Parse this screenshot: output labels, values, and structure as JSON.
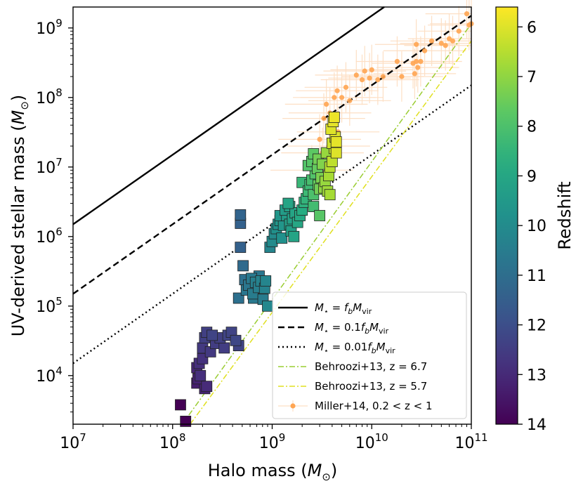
{
  "chart_data": {
    "type": "scatter",
    "xscale": "log",
    "yscale": "log",
    "xlim": [
      10000000.0,
      100000000000.0
    ],
    "ylim": [
      2000.0,
      2000000000.0
    ],
    "xlabel": "Halo mass (M⊙)",
    "ylabel": "UV-derived stellar mass (M⊙)",
    "x_ticks": [
      {
        "value": 10000000.0,
        "base": "10",
        "exp": "7"
      },
      {
        "value": 100000000.0,
        "base": "10",
        "exp": "8"
      },
      {
        "value": 1000000000.0,
        "base": "10",
        "exp": "9"
      },
      {
        "value": 10000000000.0,
        "base": "10",
        "exp": "10"
      },
      {
        "value": 100000000000.0,
        "base": "10",
        "exp": "11"
      }
    ],
    "y_ticks": [
      {
        "value": 10000.0,
        "base": "10",
        "exp": "4"
      },
      {
        "value": 100000.0,
        "base": "10",
        "exp": "5"
      },
      {
        "value": 1000000.0,
        "base": "10",
        "exp": "6"
      },
      {
        "value": 10000000.0,
        "base": "10",
        "exp": "7"
      },
      {
        "value": 100000000.0,
        "base": "10",
        "exp": "8"
      },
      {
        "value": 1000000000.0,
        "base": "10",
        "exp": "9"
      }
    ],
    "colorbar": {
      "label": "Redshift",
      "range": [
        5.6,
        14
      ],
      "ticks": [
        "6",
        "7",
        "8",
        "9",
        "10",
        "11",
        "12",
        "13",
        "14"
      ]
    },
    "lines": [
      {
        "name": "fb",
        "label_prefix": "M",
        "label_sub": "⋆",
        "label_eq": " = ",
        "label_f": "f",
        "label_fsub": "b",
        "label_M": "M",
        "label_Msub": "vir",
        "label_coef": "",
        "style": "solid",
        "color": "#000000",
        "ratio": 0.15
      },
      {
        "name": "fb01",
        "label_prefix": "M",
        "label_sub": "⋆",
        "label_eq": " = ",
        "label_f": "f",
        "label_fsub": "b",
        "label_M": "M",
        "label_Msub": "vir",
        "label_coef": "0.1",
        "style": "dashed",
        "color": "#000000",
        "ratio": 0.015
      },
      {
        "name": "fb001",
        "label_prefix": "M",
        "label_sub": "⋆",
        "label_eq": " = ",
        "label_f": "f",
        "label_fsub": "b",
        "label_M": "M",
        "label_Msub": "vir",
        "label_coef": "0.01",
        "style": "dotted",
        "color": "#000000",
        "ratio": 0.0015
      }
    ],
    "behroozi": [
      {
        "label": "Behroozi+13, z = 6.7",
        "color": "#9acd32",
        "points": [
          [
            125000000.0,
            2000.0
          ],
          [
            100000000000.0,
            1150000000.0
          ]
        ]
      },
      {
        "label": "Behroozi+13, z = 5.7",
        "color": "#e0e020",
        "points": [
          [
            150000000.0,
            2000.0
          ],
          [
            100000000000.0,
            650000000.0
          ]
        ]
      }
    ],
    "miller": {
      "label": "Miller+14, 0.2 < z < 1",
      "color": "#ffa552",
      "errcolor": "#fddfc4",
      "points": [
        [
          3500000000.0,
          80000000.0
        ],
        [
          3800000000.0,
          60000000.0
        ],
        [
          3300000000.0,
          50000000.0
        ],
        [
          5000000000.0,
          100000000.0
        ],
        [
          4500000000.0,
          125000000.0
        ],
        [
          5500000000.0,
          140000000.0
        ],
        [
          6000000000.0,
          90000000.0
        ],
        [
          4200000000.0,
          100000000.0
        ],
        [
          7000000000.0,
          210000000.0
        ],
        [
          8000000000.0,
          180000000.0
        ],
        [
          9500000000.0,
          190000000.0
        ],
        [
          11500000000.0,
          180000000.0
        ],
        [
          13000000000.0,
          200000000.0
        ],
        [
          18000000000.0,
          330000000.0
        ],
        [
          20000000000.0,
          200000000.0
        ],
        [
          26000000000.0,
          310000000.0
        ],
        [
          28000000000.0,
          330000000.0
        ],
        [
          29000000000.0,
          270000000.0
        ],
        [
          27000000000.0,
          220000000.0
        ],
        [
          31000000000.0,
          330000000.0
        ],
        [
          34000000000.0,
          470000000.0
        ],
        [
          50000000000.0,
          600000000.0
        ],
        [
          60000000000.0,
          700000000.0
        ],
        [
          55000000000.0,
          560000000.0
        ],
        [
          65000000000.0,
          650000000.0
        ],
        [
          90000000000.0,
          1600000000.0
        ],
        [
          95000000000.0,
          1100000000.0
        ],
        [
          100000000000.0,
          1150000000.0
        ],
        [
          28000000000.0,
          580000000.0
        ],
        [
          3200000000.0,
          16000000.0
        ],
        [
          3000000000.0,
          25000000.0
        ],
        [
          4600000000.0,
          32000000.0
        ],
        [
          3700000000.0,
          20000000.0
        ],
        [
          2500000000.0,
          9000000.0
        ],
        [
          8500000000.0,
          240000000.0
        ],
        [
          40000000000.0,
          650000000.0
        ],
        [
          10000000000.0,
          250000000.0
        ],
        [
          75000000000.0,
          900000000.0
        ]
      ]
    },
    "squares": [
      [
        120000000.0,
        3800.0,
        14.0
      ],
      [
        135000000.0,
        2200.0,
        14.0
      ],
      [
        175000000.0,
        13000.0,
        13.1
      ],
      [
        190000000.0,
        10000.0,
        12.9
      ],
      [
        175000000.0,
        7800.0,
        13.3
      ],
      [
        210000000.0,
        6500.0,
        13.2
      ],
      [
        185000000.0,
        15000.0,
        12.9
      ],
      [
        200000000.0,
        17500.0,
        12.8
      ],
      [
        220000000.0,
        7000.0,
        13.0
      ],
      [
        180000000.0,
        9000.0,
        13.2
      ],
      [
        200000000.0,
        25000.0,
        12.6
      ],
      [
        210000000.0,
        35000.0,
        12.4
      ],
      [
        220000000.0,
        42000.0,
        12.4
      ],
      [
        250000000.0,
        38000.0,
        12.3
      ],
      [
        270000000.0,
        29000.0,
        12.5
      ],
      [
        240000000.0,
        22000.0,
        12.6
      ],
      [
        300000000.0,
        35000.0,
        12.4
      ],
      [
        330000000.0,
        25000.0,
        12.5
      ],
      [
        360000000.0,
        38000.0,
        12.3
      ],
      [
        430000000.0,
        32000.0,
        12.2
      ],
      [
        390000000.0,
        42000.0,
        12.3
      ],
      [
        460000000.0,
        27000.0,
        12.3
      ],
      [
        480000000.0,
        2050000.0,
        11.3
      ],
      [
        480000000.0,
        1550000.0,
        11.4
      ],
      [
        480000000.0,
        700000.0,
        11.4
      ],
      [
        510000000.0,
        380000.0,
        11.1
      ],
      [
        460000000.0,
        130000.0,
        10.9
      ],
      [
        550000000.0,
        170000.0,
        10.7
      ],
      [
        530000000.0,
        240000.0,
        10.9
      ],
      [
        620000000.0,
        250000.0,
        10.6
      ],
      [
        580000000.0,
        200000.0,
        10.7
      ],
      [
        640000000.0,
        150000.0,
        10.5
      ],
      [
        680000000.0,
        220000.0,
        10.4
      ],
      [
        740000000.0,
        270000.0,
        10.7
      ],
      [
        730000000.0,
        185000.0,
        10.4
      ],
      [
        770000000.0,
        230000.0,
        10.3
      ],
      [
        810000000.0,
        125000.0,
        10.5
      ],
      [
        840000000.0,
        180000.0,
        10.3
      ],
      [
        860000000.0,
        230000.0,
        10.2
      ],
      [
        900000000.0,
        100000.0,
        10.1
      ],
      [
        650000000.0,
        130000.0,
        10.6
      ],
      [
        950000000.0,
        700000.0,
        10.2
      ],
      [
        1000000000.0,
        850000.0,
        10.0
      ],
      [
        1050000000.0,
        1100000.0,
        10.0
      ],
      [
        1100000000.0,
        1300000.0,
        9.8
      ],
      [
        1150000000.0,
        1500000.0,
        9.8
      ],
      [
        1200000000.0,
        1700000.0,
        9.6
      ],
      [
        1300000000.0,
        1450000.0,
        9.6
      ],
      [
        1250000000.0,
        950000.0,
        9.8
      ],
      [
        1400000000.0,
        2000000.0,
        9.4
      ],
      [
        1500000000.0,
        1500000.0,
        9.3
      ],
      [
        1550000000.0,
        1200000.0,
        9.3
      ],
      [
        1600000000.0,
        1800000.0,
        9.2
      ],
      [
        1700000000.0,
        2200000.0,
        9.1
      ],
      [
        1800000000.0,
        1600000.0,
        9.0
      ],
      [
        1650000000.0,
        1000000.0,
        9.1
      ],
      [
        1200000000.0,
        2000000.0,
        9.6
      ],
      [
        1350000000.0,
        2400000.0,
        9.4
      ],
      [
        1500000000.0,
        2700000.0,
        9.2
      ],
      [
        1450000000.0,
        3000000.0,
        9.1
      ],
      [
        1900000000.0,
        2000000.0,
        8.9
      ],
      [
        2000000000.0,
        2400000.0,
        8.8
      ],
      [
        2100000000.0,
        3100000.0,
        8.6
      ],
      [
        2200000000.0,
        3500000.0,
        8.5
      ],
      [
        2300000000.0,
        4500000.0,
        8.3
      ],
      [
        2400000000.0,
        5600000.0,
        8.3
      ],
      [
        2000000000.0,
        6000000.0,
        8.4
      ],
      [
        2500000000.0,
        6500000.0,
        8.1
      ],
      [
        2600000000.0,
        4000000.0,
        8.0
      ],
      [
        2700000000.0,
        8000000.0,
        7.9
      ],
      [
        2300000000.0,
        10500000.0,
        7.9
      ],
      [
        2500000000.0,
        12000000.0,
        7.8
      ],
      [
        2850000000.0,
        9500000.0,
        7.6
      ],
      [
        2900000000.0,
        5500000.0,
        7.6
      ],
      [
        3000000000.0,
        4800000.0,
        7.4
      ],
      [
        3100000000.0,
        7000000.0,
        7.3
      ],
      [
        3200000000.0,
        11000000.0,
        7.2
      ],
      [
        3300000000.0,
        5000000.0,
        7.0
      ],
      [
        3400000000.0,
        6200000.0,
        6.9
      ],
      [
        3600000000.0,
        4500000.0,
        6.8
      ],
      [
        3700000000.0,
        7500000.0,
        6.7
      ],
      [
        2600000000.0,
        15500000.0,
        7.7
      ],
      [
        2900000000.0,
        13000000.0,
        7.4
      ],
      [
        3500000000.0,
        16000000.0,
        6.9
      ],
      [
        3800000000.0,
        10000000.0,
        6.5
      ],
      [
        4000000000.0,
        12000000.0,
        6.4
      ],
      [
        4200000000.0,
        18500000.0,
        6.3
      ],
      [
        4000000000.0,
        22000000.0,
        6.2
      ],
      [
        4300000000.0,
        27000000.0,
        6.0
      ],
      [
        4400000000.0,
        23000000.0,
        5.9
      ],
      [
        3900000000.0,
        35000000.0,
        6.0
      ],
      [
        4100000000.0,
        45000000.0,
        5.9
      ],
      [
        4200000000.0,
        52000000.0,
        5.8
      ],
      [
        4400000000.0,
        16000000.0,
        6.0
      ],
      [
        3000000000.0,
        2000000.0,
        7.8
      ],
      [
        2600000000.0,
        2700000.0,
        8.2
      ],
      [
        3800000000.0,
        4000000.0,
        6.7
      ]
    ]
  }
}
